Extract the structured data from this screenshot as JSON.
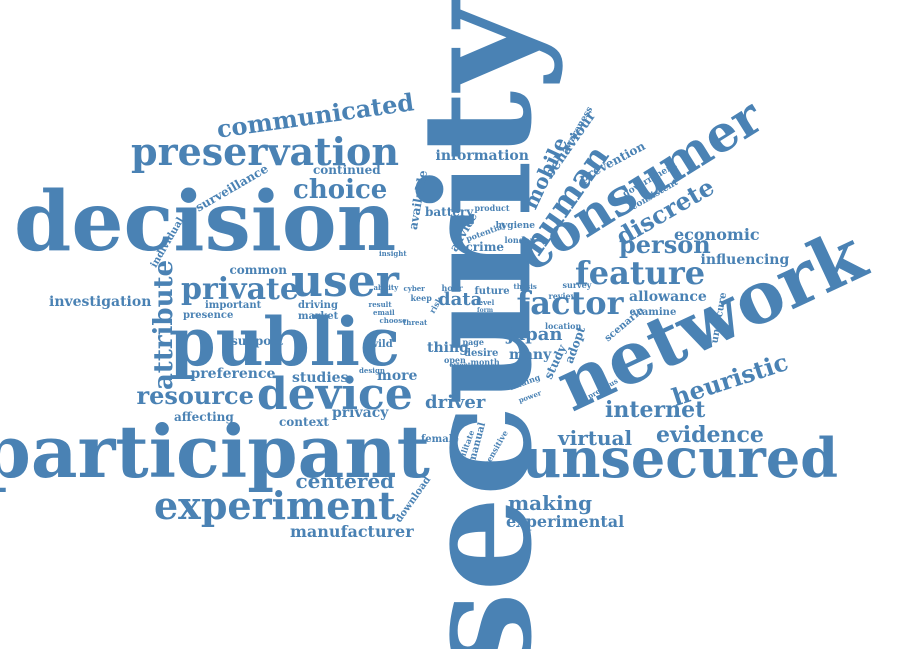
{
  "color": "#4a82b4",
  "words": [
    {
      "id": "security",
      "text": "security"
    },
    {
      "id": "decision",
      "text": "decision"
    },
    {
      "id": "participant",
      "text": "participant"
    },
    {
      "id": "public",
      "text": "public"
    },
    {
      "id": "network",
      "text": "network"
    },
    {
      "id": "unsecured",
      "text": "unsecured"
    },
    {
      "id": "consumer",
      "text": "consumer"
    },
    {
      "id": "preservation",
      "text": "preservation"
    },
    {
      "id": "user",
      "text": "user"
    },
    {
      "id": "device",
      "text": "device"
    },
    {
      "id": "experiment",
      "text": "experiment"
    },
    {
      "id": "human",
      "text": "human"
    },
    {
      "id": "factor",
      "text": "factor"
    },
    {
      "id": "feature",
      "text": "feature"
    },
    {
      "id": "private",
      "text": "private"
    },
    {
      "id": "communicated",
      "text": "communicated"
    },
    {
      "id": "choice",
      "text": "choice"
    },
    {
      "id": "resource",
      "text": "resource"
    },
    {
      "id": "attribute",
      "text": "attribute"
    },
    {
      "id": "person",
      "text": "person"
    },
    {
      "id": "discrete",
      "text": "discrete"
    },
    {
      "id": "heuristic",
      "text": "heuristic"
    },
    {
      "id": "internet",
      "text": "internet"
    },
    {
      "id": "virtual",
      "text": "virtual"
    },
    {
      "id": "evidence",
      "text": "evidence"
    },
    {
      "id": "mobile",
      "text": "mobile"
    },
    {
      "id": "centered",
      "text": "centered"
    },
    {
      "id": "making",
      "text": "making"
    },
    {
      "id": "experimental",
      "text": "experimental"
    },
    {
      "id": "manufacturer",
      "text": "manufacturer"
    },
    {
      "id": "investigation",
      "text": "investigation"
    },
    {
      "id": "data",
      "text": "data"
    },
    {
      "id": "economic",
      "text": "economic"
    },
    {
      "id": "influencing",
      "text": "influencing"
    },
    {
      "id": "allowance",
      "text": "allowance"
    },
    {
      "id": "information",
      "text": "information"
    },
    {
      "id": "behaviour",
      "text": "behaviour"
    },
    {
      "id": "prevention",
      "text": "prevention"
    },
    {
      "id": "japan",
      "text": "japan"
    },
    {
      "id": "driver",
      "text": "driver"
    },
    {
      "id": "studies",
      "text": "studies"
    },
    {
      "id": "more",
      "text": "more"
    },
    {
      "id": "privacy",
      "text": "privacy"
    },
    {
      "id": "context",
      "text": "context"
    },
    {
      "id": "affecting",
      "text": "affecting"
    },
    {
      "id": "preference",
      "text": "preference"
    },
    {
      "id": "support",
      "text": "support"
    },
    {
      "id": "presence",
      "text": "presence"
    },
    {
      "id": "important",
      "text": "important"
    },
    {
      "id": "common",
      "text": "common"
    },
    {
      "id": "continued",
      "text": "continued"
    },
    {
      "id": "surveillance",
      "text": "surveillance"
    },
    {
      "id": "individual",
      "text": "individual"
    },
    {
      "id": "thing",
      "text": "thing"
    },
    {
      "id": "many",
      "text": "many"
    },
    {
      "id": "study",
      "text": "study"
    },
    {
      "id": "adopt",
      "text": "adopt"
    },
    {
      "id": "advice",
      "text": "advice"
    },
    {
      "id": "crime",
      "text": "crime"
    },
    {
      "id": "battery",
      "text": "battery"
    },
    {
      "id": "available",
      "text": "available"
    },
    {
      "id": "unsecure",
      "text": "unsecure"
    },
    {
      "id": "examine",
      "text": "examine"
    },
    {
      "id": "scenario",
      "text": "scenario"
    },
    {
      "id": "manual",
      "text": "manual"
    },
    {
      "id": "female",
      "text": "female"
    },
    {
      "id": "download",
      "text": "download"
    },
    {
      "id": "future",
      "text": "future"
    },
    {
      "id": "driving",
      "text": "driving"
    },
    {
      "id": "market",
      "text": "market"
    },
    {
      "id": "wild",
      "text": "wild"
    },
    {
      "id": "awareness",
      "text": "awareness"
    },
    {
      "id": "government",
      "text": "government"
    },
    {
      "id": "consistent",
      "text": "consistent"
    },
    {
      "id": "hygiene",
      "text": "hygiene"
    },
    {
      "id": "product",
      "text": "product"
    },
    {
      "id": "keep",
      "text": "keep"
    },
    {
      "id": "risk",
      "text": "risk"
    },
    {
      "id": "desire",
      "text": "desire"
    },
    {
      "id": "page",
      "text": "page"
    },
    {
      "id": "open",
      "text": "open"
    },
    {
      "id": "month",
      "text": "month"
    },
    {
      "id": "location",
      "text": "location"
    },
    {
      "id": "review",
      "text": "review"
    },
    {
      "id": "survey",
      "text": "survey"
    },
    {
      "id": "finding",
      "text": "finding"
    },
    {
      "id": "previous",
      "text": "previous"
    },
    {
      "id": "sensitive",
      "text": "sensitive"
    },
    {
      "id": "militate",
      "text": "militate"
    },
    {
      "id": "potential",
      "text": "potential"
    },
    {
      "id": "london",
      "text": "london"
    },
    {
      "id": "insight",
      "text": "insight"
    },
    {
      "id": "choose",
      "text": "choose"
    },
    {
      "id": "threat",
      "text": "threat"
    },
    {
      "id": "design",
      "text": "design"
    },
    {
      "id": "email",
      "text": "email"
    },
    {
      "id": "result",
      "text": "result"
    },
    {
      "id": "ability",
      "text": "ability"
    },
    {
      "id": "hour",
      "text": "hour"
    },
    {
      "id": "level",
      "text": "level"
    },
    {
      "id": "thesis",
      "text": "thesis"
    },
    {
      "id": "form",
      "text": "form"
    },
    {
      "id": "power",
      "text": "power"
    },
    {
      "id": "cyber",
      "text": "cyber"
    },
    {
      "id": "extent",
      "text": "extent"
    }
  ]
}
